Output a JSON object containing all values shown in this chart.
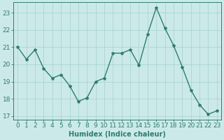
{
  "x": [
    0,
    1,
    2,
    3,
    4,
    5,
    6,
    7,
    8,
    9,
    10,
    11,
    12,
    13,
    14,
    15,
    16,
    17,
    18,
    19,
    20,
    21,
    22,
    23
  ],
  "y": [
    21.0,
    20.3,
    20.85,
    19.75,
    19.2,
    19.4,
    18.75,
    17.85,
    18.05,
    19.0,
    19.2,
    20.65,
    20.65,
    20.85,
    19.95,
    21.75,
    23.3,
    22.1,
    21.1,
    19.85,
    18.5,
    17.65,
    17.1,
    17.3
  ],
  "line_color": "#2e7d6e",
  "marker": "*",
  "marker_size": 3.0,
  "bg_color": "#cce9e9",
  "grid_color": "#aad4d4",
  "xlabel": "Humidex (Indice chaleur)",
  "ylim": [
    16.8,
    23.6
  ],
  "yticks": [
    17,
    18,
    19,
    20,
    21,
    22,
    23
  ],
  "xticks": [
    0,
    1,
    2,
    3,
    4,
    5,
    6,
    7,
    8,
    9,
    10,
    11,
    12,
    13,
    14,
    15,
    16,
    17,
    18,
    19,
    20,
    21,
    22,
    23
  ],
  "xlabel_fontsize": 7.0,
  "tick_fontsize": 6.5,
  "line_width": 1.0
}
